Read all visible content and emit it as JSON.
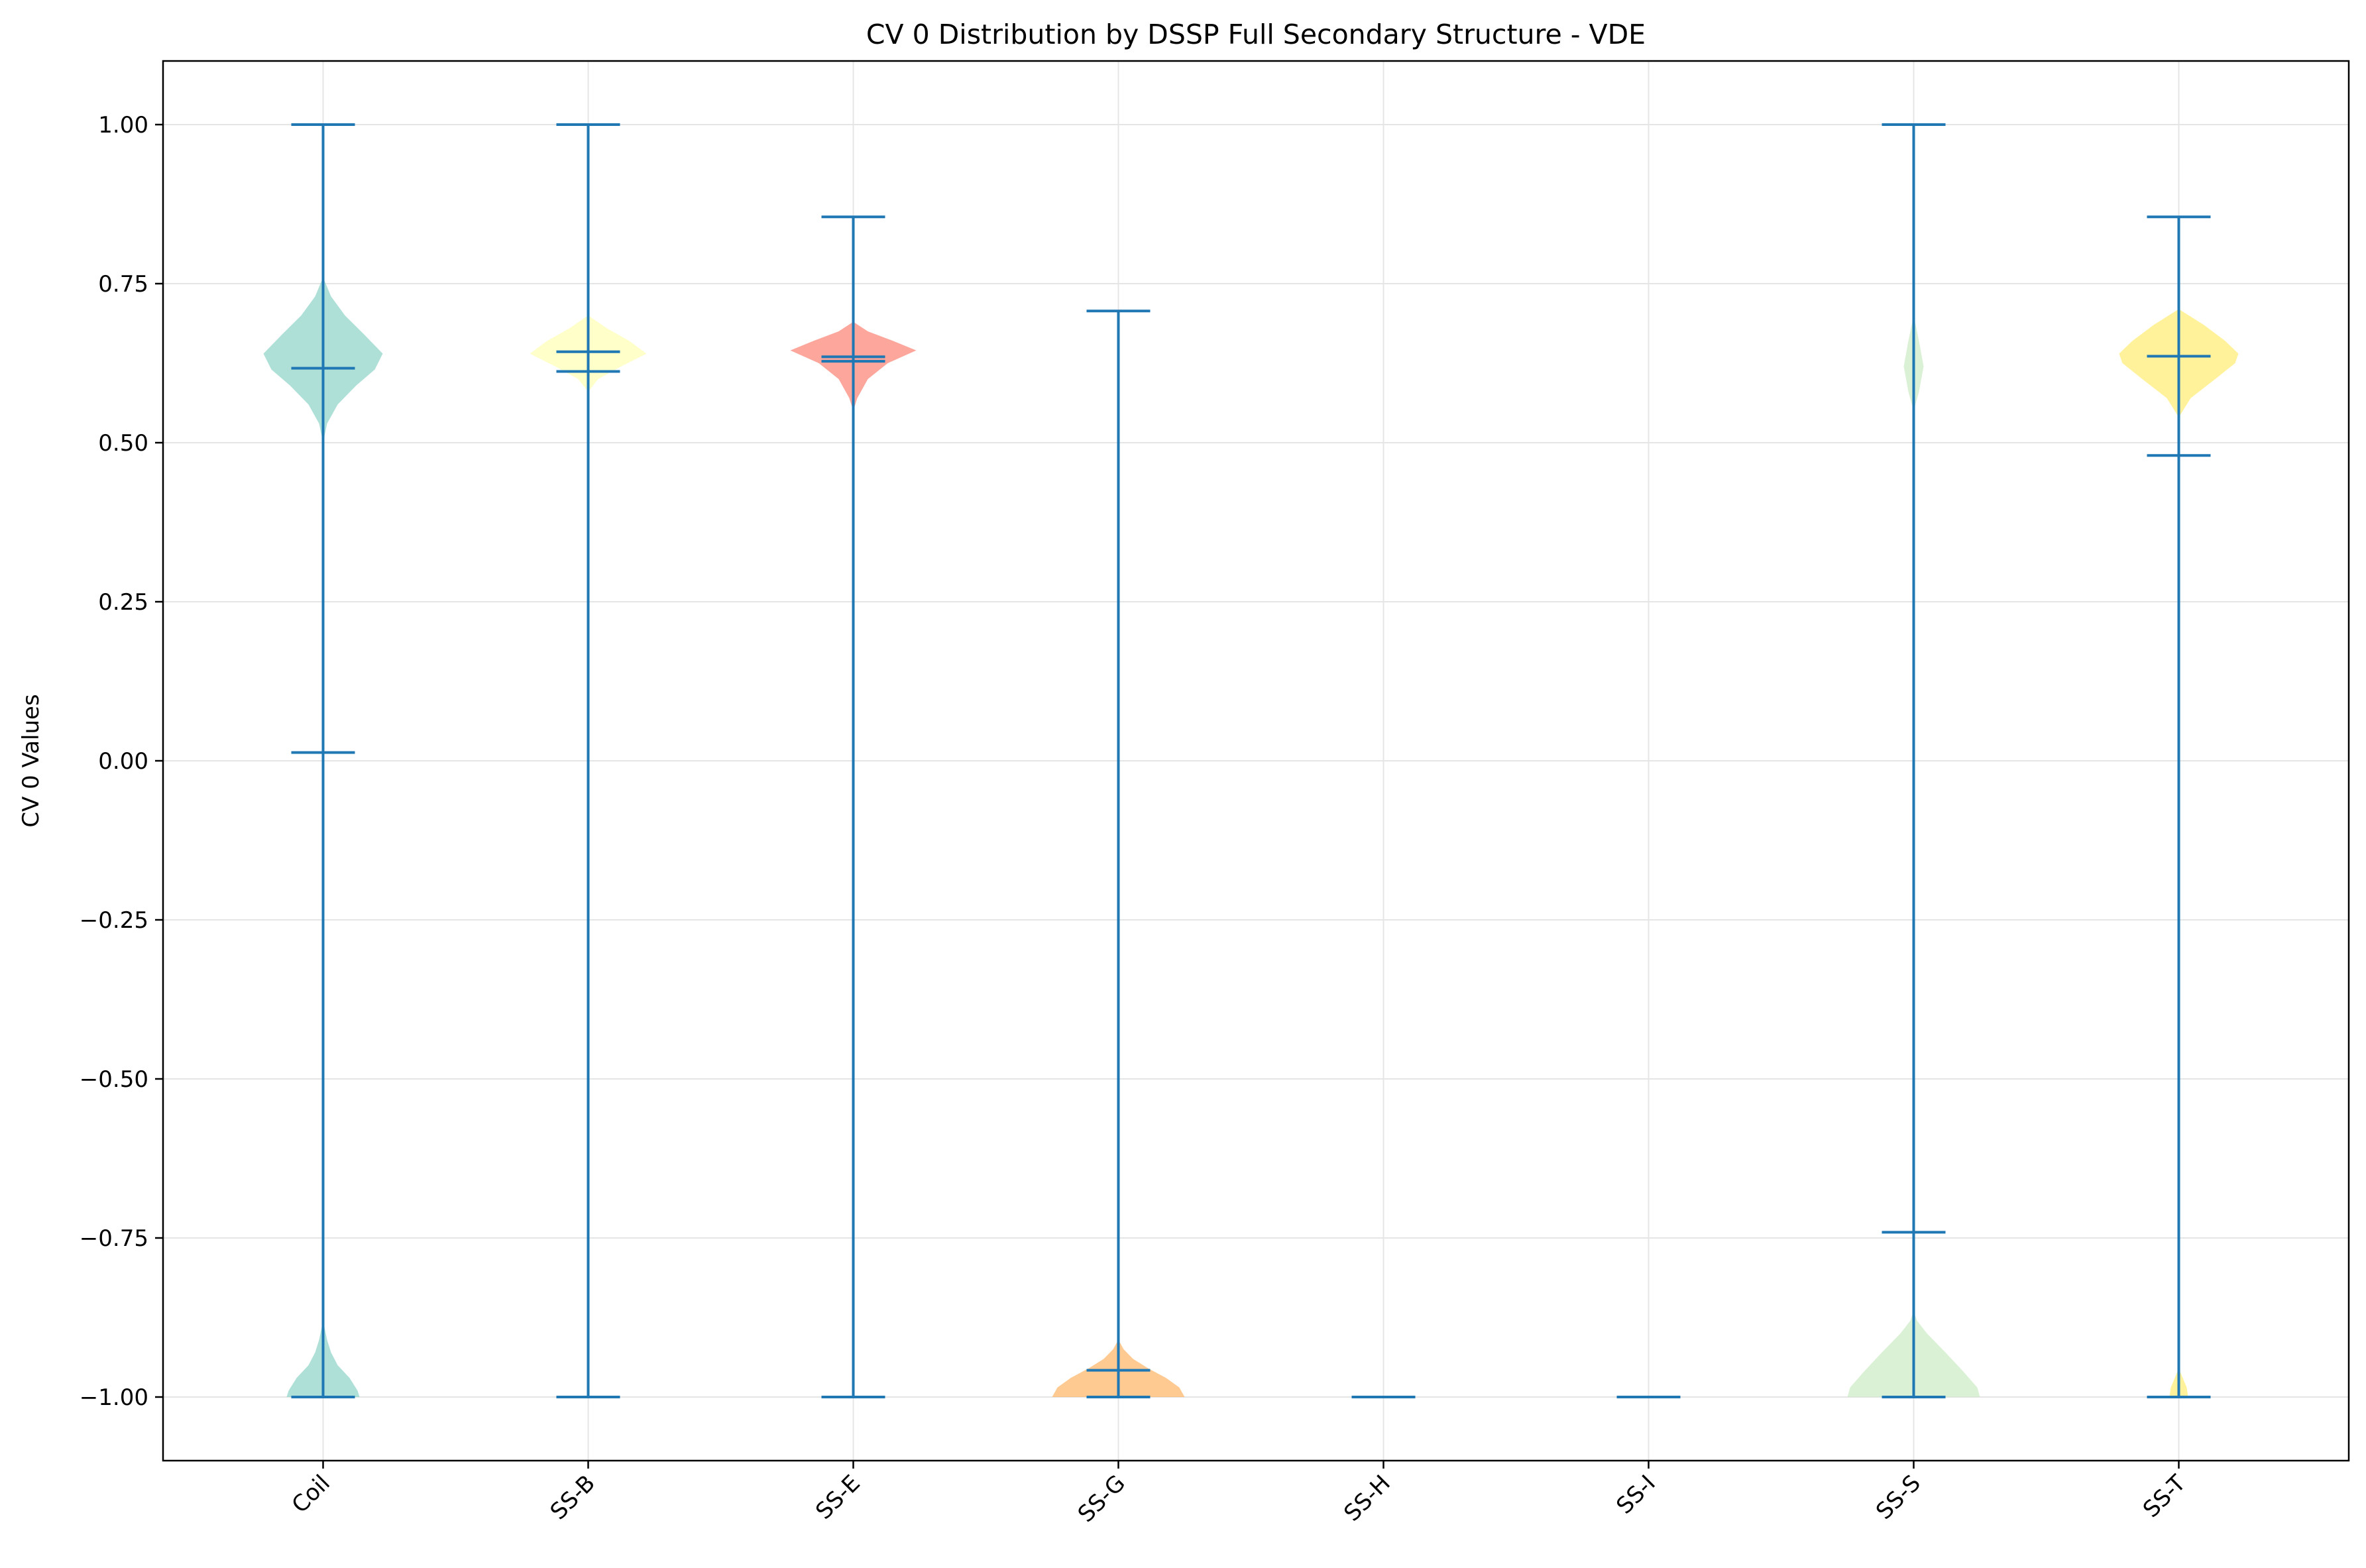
{
  "chart_data": {
    "type": "violin",
    "title": "CV 0 Distribution by DSSP Full Secondary Structure - VDE",
    "xlabel": "",
    "ylabel": "CV 0 Values",
    "ylim": [
      -1.1,
      1.1
    ],
    "yticks": [
      1.0,
      0.75,
      0.5,
      0.25,
      0.0,
      -0.25,
      -0.5,
      -0.75,
      -1.0
    ],
    "ytick_labels": [
      "1.00",
      "0.75",
      "0.50",
      "0.25",
      "0.00",
      "−0.25",
      "−0.50",
      "−0.75",
      "−1.00"
    ],
    "grid": true,
    "categories": [
      "Coil",
      "SS-B",
      "SS-E",
      "SS-G",
      "SS-H",
      "SS-I",
      "SS-S",
      "SS-T"
    ],
    "colors": {
      "stats_line": "#1f77b4",
      "grid": "#e5e5e5",
      "axis": "#000000",
      "violins": [
        "#8dd3c7",
        "#ffffb3",
        "#fb8072",
        "#fdb462",
        "#bebada",
        "#80b1d3",
        "#ccebc5",
        "#ffed6f"
      ]
    },
    "violins": [
      {
        "name": "Coil",
        "min": -1.0,
        "max": 1.0,
        "mean": 0.013,
        "median": 0.617,
        "density": [
          {
            "y": -1.0,
            "w": 0.55
          },
          {
            "y": -0.99,
            "w": 0.52
          },
          {
            "y": -0.97,
            "w": 0.4
          },
          {
            "y": -0.95,
            "w": 0.22
          },
          {
            "y": -0.93,
            "w": 0.12
          },
          {
            "y": -0.91,
            "w": 0.06
          },
          {
            "y": -0.89,
            "w": 0.02
          },
          {
            "y": -0.88,
            "w": 0.0
          },
          {
            "y": 0.5,
            "w": 0.0
          },
          {
            "y": 0.53,
            "w": 0.06
          },
          {
            "y": 0.56,
            "w": 0.22
          },
          {
            "y": 0.59,
            "w": 0.5
          },
          {
            "y": 0.615,
            "w": 0.78
          },
          {
            "y": 0.64,
            "w": 0.9
          },
          {
            "y": 0.67,
            "w": 0.62
          },
          {
            "y": 0.7,
            "w": 0.33
          },
          {
            "y": 0.73,
            "w": 0.12
          },
          {
            "y": 0.76,
            "w": 0.0
          }
        ]
      },
      {
        "name": "SS-B",
        "min": -1.0,
        "max": 1.0,
        "mean": 0.612,
        "median": 0.643,
        "density": [
          {
            "y": 0.58,
            "w": 0.0
          },
          {
            "y": 0.6,
            "w": 0.15
          },
          {
            "y": 0.62,
            "w": 0.5
          },
          {
            "y": 0.64,
            "w": 0.88
          },
          {
            "y": 0.66,
            "w": 0.62
          },
          {
            "y": 0.68,
            "w": 0.28
          },
          {
            "y": 0.7,
            "w": 0.0
          }
        ]
      },
      {
        "name": "SS-E",
        "min": -1.0,
        "max": 0.855,
        "mean": 0.628,
        "median": 0.635,
        "density": [
          {
            "y": 0.55,
            "w": 0.0
          },
          {
            "y": 0.57,
            "w": 0.06
          },
          {
            "y": 0.6,
            "w": 0.22
          },
          {
            "y": 0.625,
            "w": 0.52
          },
          {
            "y": 0.645,
            "w": 0.95
          },
          {
            "y": 0.66,
            "w": 0.6
          },
          {
            "y": 0.675,
            "w": 0.22
          },
          {
            "y": 0.69,
            "w": 0.0
          }
        ]
      },
      {
        "name": "SS-G",
        "min": -1.0,
        "max": 0.707,
        "mean": -0.958,
        "median": -1.0,
        "density": [
          {
            "y": -1.0,
            "w": 1.0
          },
          {
            "y": -0.985,
            "w": 0.92
          },
          {
            "y": -0.97,
            "w": 0.72
          },
          {
            "y": -0.955,
            "w": 0.45
          },
          {
            "y": -0.94,
            "w": 0.22
          },
          {
            "y": -0.925,
            "w": 0.08
          },
          {
            "y": -0.91,
            "w": 0.0
          }
        ]
      },
      {
        "name": "SS-H",
        "min": -1.0,
        "max": -1.0,
        "mean": -1.0,
        "median": -1.0,
        "density": []
      },
      {
        "name": "SS-I",
        "min": -1.0,
        "max": -1.0,
        "mean": -1.0,
        "median": -1.0,
        "density": []
      },
      {
        "name": "SS-S",
        "min": -1.0,
        "max": 1.0,
        "mean": -0.741,
        "median": -1.0,
        "density": [
          {
            "y": -1.0,
            "w": 1.0
          },
          {
            "y": -0.985,
            "w": 0.96
          },
          {
            "y": -0.96,
            "w": 0.75
          },
          {
            "y": -0.93,
            "w": 0.48
          },
          {
            "y": -0.9,
            "w": 0.2
          },
          {
            "y": -0.88,
            "w": 0.05
          },
          {
            "y": -0.865,
            "w": 0.0
          },
          {
            "y": 0.55,
            "w": 0.0
          },
          {
            "y": 0.58,
            "w": 0.08
          },
          {
            "y": 0.62,
            "w": 0.15
          },
          {
            "y": 0.66,
            "w": 0.08
          },
          {
            "y": 0.7,
            "w": 0.0
          }
        ]
      },
      {
        "name": "SS-T",
        "min": -1.0,
        "max": 0.855,
        "mean": 0.48,
        "median": 0.636,
        "density": [
          {
            "y": -1.0,
            "w": 0.14
          },
          {
            "y": -0.985,
            "w": 0.12
          },
          {
            "y": -0.97,
            "w": 0.06
          },
          {
            "y": -0.955,
            "w": 0.0
          },
          {
            "y": 0.54,
            "w": 0.0
          },
          {
            "y": 0.57,
            "w": 0.18
          },
          {
            "y": 0.6,
            "w": 0.55
          },
          {
            "y": 0.625,
            "w": 0.85
          },
          {
            "y": 0.64,
            "w": 0.9
          },
          {
            "y": 0.66,
            "w": 0.7
          },
          {
            "y": 0.685,
            "w": 0.38
          },
          {
            "y": 0.71,
            "w": 0.0
          }
        ]
      }
    ]
  }
}
